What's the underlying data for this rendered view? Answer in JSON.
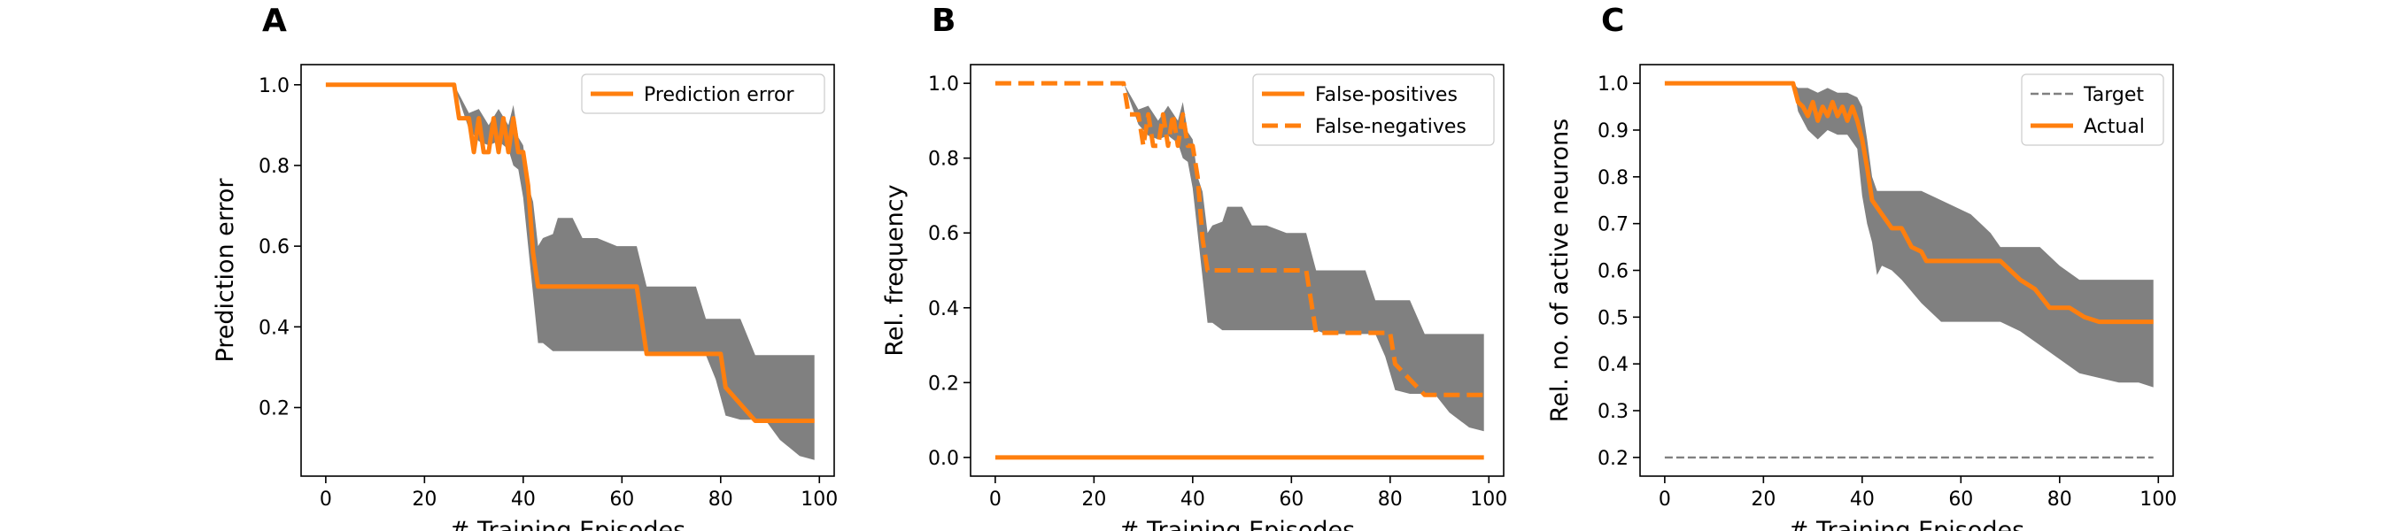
{
  "colors": {
    "orange": "#ff7f0e",
    "band": "#808080",
    "target": "#808080"
  },
  "chart_data": [
    {
      "panel": "A",
      "type": "line",
      "xlabel": "# Training Episodes",
      "ylabel": "Prediction error",
      "xlim": [
        -5,
        103
      ],
      "ylim": [
        0.03,
        1.05
      ],
      "xticks": [
        0,
        20,
        40,
        60,
        80,
        100
      ],
      "yticks": [
        0.2,
        0.4,
        0.6,
        0.8,
        1.0
      ],
      "ytick_labels": [
        "0.2",
        "0.4",
        "0.6",
        "0.8",
        "1.0"
      ],
      "legend": "top-right",
      "series": [
        {
          "name": "Prediction error",
          "style": "solid",
          "color": "#ff7f0e",
          "x": [
            0,
            26,
            27,
            29,
            30,
            31,
            32,
            33,
            34,
            35,
            36,
            37,
            38,
            39,
            40,
            41,
            42,
            43,
            44,
            63,
            64,
            65,
            67,
            80,
            81,
            87,
            99
          ],
          "y": [
            1.0,
            1.0,
            0.917,
            0.917,
            0.833,
            0.917,
            0.833,
            0.833,
            0.917,
            0.833,
            0.917,
            0.833,
            0.917,
            0.833,
            0.833,
            0.75,
            0.583,
            0.5,
            0.5,
            0.5,
            0.417,
            0.333,
            0.333,
            0.333,
            0.25,
            0.167,
            0.167
          ]
        }
      ],
      "band": {
        "x": [
          0,
          26,
          29,
          31,
          33,
          35,
          37,
          38,
          39,
          40,
          41,
          42,
          43,
          44,
          46,
          47,
          50,
          52,
          55,
          59,
          63,
          65,
          67,
          72,
          75,
          77,
          79,
          81,
          84,
          87,
          89,
          92,
          96,
          99
        ],
        "upper": [
          1.0,
          1.0,
          0.93,
          0.94,
          0.9,
          0.94,
          0.9,
          0.95,
          0.87,
          0.85,
          0.75,
          0.71,
          0.6,
          0.62,
          0.63,
          0.67,
          0.67,
          0.62,
          0.62,
          0.6,
          0.6,
          0.5,
          0.5,
          0.5,
          0.5,
          0.42,
          0.42,
          0.42,
          0.42,
          0.33,
          0.33,
          0.33,
          0.33,
          0.33
        ],
        "lower": [
          1.0,
          1.0,
          0.89,
          0.86,
          0.85,
          0.86,
          0.84,
          0.8,
          0.79,
          0.72,
          0.6,
          0.48,
          0.36,
          0.36,
          0.34,
          0.34,
          0.34,
          0.34,
          0.34,
          0.34,
          0.34,
          0.34,
          0.33,
          0.33,
          0.33,
          0.33,
          0.27,
          0.18,
          0.17,
          0.17,
          0.17,
          0.12,
          0.08,
          0.07
        ]
      }
    },
    {
      "panel": "B",
      "type": "line",
      "xlabel": "# Training Episodes",
      "ylabel": "Rel. frequency",
      "xlim": [
        -5,
        103
      ],
      "ylim": [
        -0.05,
        1.05
      ],
      "xticks": [
        0,
        20,
        40,
        60,
        80,
        100
      ],
      "yticks": [
        0.0,
        0.2,
        0.4,
        0.6,
        0.8,
        1.0
      ],
      "ytick_labels": [
        "0.0",
        "0.2",
        "0.4",
        "0.6",
        "0.8",
        "1.0"
      ],
      "legend": "top-right",
      "series": [
        {
          "name": "False-positives",
          "style": "solid",
          "color": "#ff7f0e",
          "x": [
            0,
            99
          ],
          "y": [
            0.0,
            0.0
          ]
        },
        {
          "name": "False-negatives",
          "style": "dashed",
          "color": "#ff7f0e",
          "x": [
            0,
            26,
            27,
            29,
            30,
            31,
            32,
            33,
            34,
            35,
            36,
            37,
            38,
            39,
            40,
            41,
            42,
            43,
            44,
            63,
            64,
            65,
            67,
            80,
            81,
            87,
            99
          ],
          "y": [
            1.0,
            1.0,
            0.917,
            0.917,
            0.833,
            0.917,
            0.833,
            0.833,
            0.917,
            0.833,
            0.917,
            0.833,
            0.917,
            0.833,
            0.833,
            0.75,
            0.583,
            0.5,
            0.5,
            0.5,
            0.417,
            0.333,
            0.333,
            0.333,
            0.25,
            0.167,
            0.167
          ]
        }
      ],
      "band": {
        "x": [
          0,
          26,
          29,
          31,
          33,
          35,
          37,
          38,
          39,
          40,
          41,
          42,
          43,
          44,
          46,
          47,
          50,
          52,
          55,
          59,
          63,
          65,
          67,
          72,
          75,
          77,
          79,
          81,
          84,
          87,
          89,
          92,
          96,
          99
        ],
        "upper": [
          1.0,
          1.0,
          0.93,
          0.94,
          0.9,
          0.94,
          0.9,
          0.95,
          0.87,
          0.85,
          0.75,
          0.71,
          0.6,
          0.62,
          0.63,
          0.67,
          0.67,
          0.62,
          0.62,
          0.6,
          0.6,
          0.5,
          0.5,
          0.5,
          0.5,
          0.42,
          0.42,
          0.42,
          0.42,
          0.33,
          0.33,
          0.33,
          0.33,
          0.33
        ],
        "lower": [
          1.0,
          1.0,
          0.89,
          0.86,
          0.85,
          0.86,
          0.84,
          0.8,
          0.79,
          0.72,
          0.6,
          0.48,
          0.36,
          0.36,
          0.34,
          0.34,
          0.34,
          0.34,
          0.34,
          0.34,
          0.34,
          0.34,
          0.33,
          0.33,
          0.33,
          0.33,
          0.27,
          0.18,
          0.17,
          0.17,
          0.17,
          0.12,
          0.08,
          0.07
        ]
      }
    },
    {
      "panel": "C",
      "type": "line",
      "xlabel": "# Training Episodes",
      "ylabel": "Rel. no. of active neurons",
      "xlim": [
        -5,
        103
      ],
      "ylim": [
        0.16,
        1.04
      ],
      "xticks": [
        0,
        20,
        40,
        60,
        80,
        100
      ],
      "yticks": [
        0.2,
        0.3,
        0.4,
        0.5,
        0.6,
        0.7,
        0.8,
        0.9,
        1.0
      ],
      "ytick_labels": [
        "0.2",
        "0.3",
        "0.4",
        "0.5",
        "0.6",
        "0.7",
        "0.8",
        "0.9",
        "1.0"
      ],
      "legend": "top-right",
      "series": [
        {
          "name": "Target",
          "style": "dashed-thin",
          "color": "#808080",
          "x": [
            0,
            99
          ],
          "y": [
            0.2,
            0.2
          ]
        },
        {
          "name": "Actual",
          "style": "solid",
          "color": "#ff7f0e",
          "x": [
            0,
            26,
            27,
            28,
            29,
            30,
            31,
            32,
            33,
            34,
            35,
            36,
            37,
            38,
            39,
            40,
            41,
            42,
            44,
            46,
            48,
            50,
            52,
            53,
            68,
            72,
            75,
            78,
            80,
            82,
            85,
            88,
            99
          ],
          "y": [
            1.0,
            1.0,
            0.96,
            0.95,
            0.93,
            0.96,
            0.92,
            0.95,
            0.93,
            0.96,
            0.93,
            0.95,
            0.92,
            0.95,
            0.92,
            0.88,
            0.82,
            0.75,
            0.72,
            0.69,
            0.69,
            0.65,
            0.64,
            0.62,
            0.62,
            0.58,
            0.56,
            0.52,
            0.52,
            0.52,
            0.5,
            0.49,
            0.49
          ]
        }
      ],
      "band": {
        "x": [
          0,
          26,
          27,
          29,
          31,
          33,
          35,
          37,
          39,
          40,
          41,
          42,
          43,
          44,
          46,
          48,
          52,
          56,
          62,
          66,
          68,
          72,
          76,
          80,
          84,
          88,
          92,
          96,
          99
        ],
        "upper": [
          1.0,
          1.0,
          0.99,
          0.99,
          0.98,
          0.99,
          0.98,
          0.98,
          0.97,
          0.95,
          0.88,
          0.8,
          0.77,
          0.77,
          0.77,
          0.77,
          0.77,
          0.75,
          0.72,
          0.68,
          0.65,
          0.65,
          0.65,
          0.61,
          0.58,
          0.58,
          0.58,
          0.58,
          0.58
        ],
        "lower": [
          1.0,
          1.0,
          0.94,
          0.9,
          0.88,
          0.9,
          0.89,
          0.89,
          0.86,
          0.76,
          0.7,
          0.66,
          0.59,
          0.61,
          0.6,
          0.58,
          0.53,
          0.49,
          0.49,
          0.49,
          0.49,
          0.47,
          0.44,
          0.41,
          0.38,
          0.37,
          0.36,
          0.36,
          0.35
        ]
      }
    }
  ]
}
